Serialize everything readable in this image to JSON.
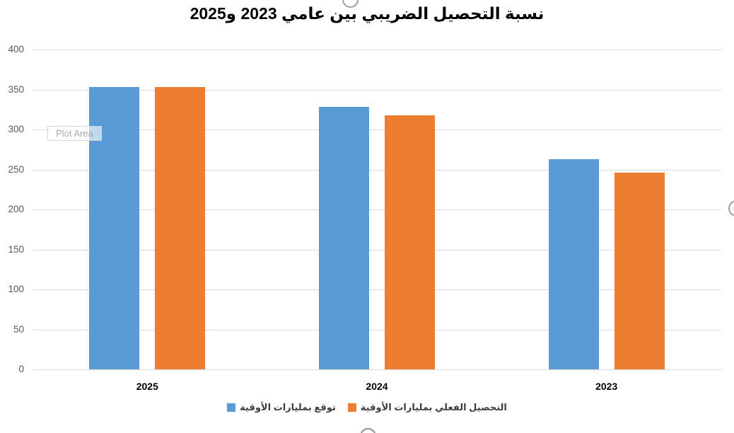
{
  "ui": {
    "plot_area_label": "Plot Area"
  },
  "chart_data": {
    "type": "bar",
    "title": "نسبة التحصيل الضريبي بين عامي 2023 و2025",
    "direction": "rtl",
    "categories": [
      "2025",
      "2024",
      "2023"
    ],
    "series": [
      {
        "key": "forecast",
        "name": "توقع بمليارات الأوقية",
        "color": "#5B9BD5",
        "values": [
          353,
          328,
          263
        ]
      },
      {
        "key": "actual",
        "name": "التحصيل الفعلي بمليارات الأوقية",
        "color": "#ED7D31",
        "values": [
          353,
          318,
          246
        ]
      }
    ],
    "ylim": [
      0,
      400
    ],
    "yticks": [
      0,
      50,
      100,
      150,
      200,
      250,
      300,
      350,
      400
    ],
    "grid": true,
    "legend_position": "bottom",
    "colors": {
      "gridline": "#D9D9D9",
      "axis_label": "#595959",
      "category_label": "#000000"
    }
  }
}
